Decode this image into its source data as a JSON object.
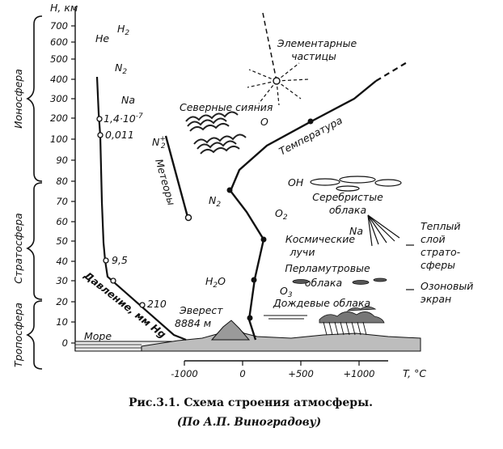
{
  "axes": {
    "y_title": "H, км",
    "x_title": "T, °C",
    "y_ticks": [
      "700",
      "600",
      "500",
      "400",
      "300",
      "200",
      "100",
      "90",
      "80",
      "70",
      "60",
      "50",
      "40",
      "30",
      "20",
      "10",
      "0"
    ],
    "x_ticks": [
      "-1000",
      "0",
      "+500",
      "+1000"
    ]
  },
  "layers": [
    "Ионосфера",
    "Стратосфера",
    "Тропосфера"
  ],
  "gases": {
    "h2": "H",
    "h2_sub": "2",
    "he": "He",
    "n2_top": "N",
    "n2_top_sub": "2",
    "na_top": "Na",
    "n2_mid": "N",
    "n2_mid_sub": "2",
    "o2": "O",
    "o2_sub": "2",
    "oh": "OH",
    "na_mid": "Na",
    "o3": "O",
    "o3_sub": "3",
    "h2o": "H",
    "h2o_sub": "2",
    "h2o_tail": "O",
    "o_atom": "O",
    "n2plus": "N",
    "n2plus_sub": "2",
    "n2plus_sup": "+"
  },
  "pressure": {
    "values": [
      "1,4·10",
      "-7",
      "0,011",
      "9,5",
      "210"
    ],
    "label": "Давление, мм Hg"
  },
  "labels": {
    "particles_1": "Элементарные",
    "particles_2": "частицы",
    "aurora": "Северные сияния",
    "temperature": "Температура",
    "meteors": "Метеоры",
    "noctilucent_1": "Серебристые",
    "noctilucent_2": "облака",
    "cosmic_1": "Космические",
    "cosmic_2": "лучи",
    "nacreous_1": "Перламутровые",
    "nacreous_2": "облака",
    "rain_clouds": "Дождевые облака",
    "everest_1": "Эверест",
    "everest_2": "8884 м",
    "sea": "Море",
    "warm_1": "Теплый",
    "warm_2": "слой",
    "warm_3": "страто-",
    "warm_4": "сферы",
    "ozone_1": "Озоновый",
    "ozone_2": "экран"
  },
  "caption": {
    "line1": "Рис.3.1. Схема строения атмосферы.",
    "line2": "(По А.П. Виноградову)"
  }
}
